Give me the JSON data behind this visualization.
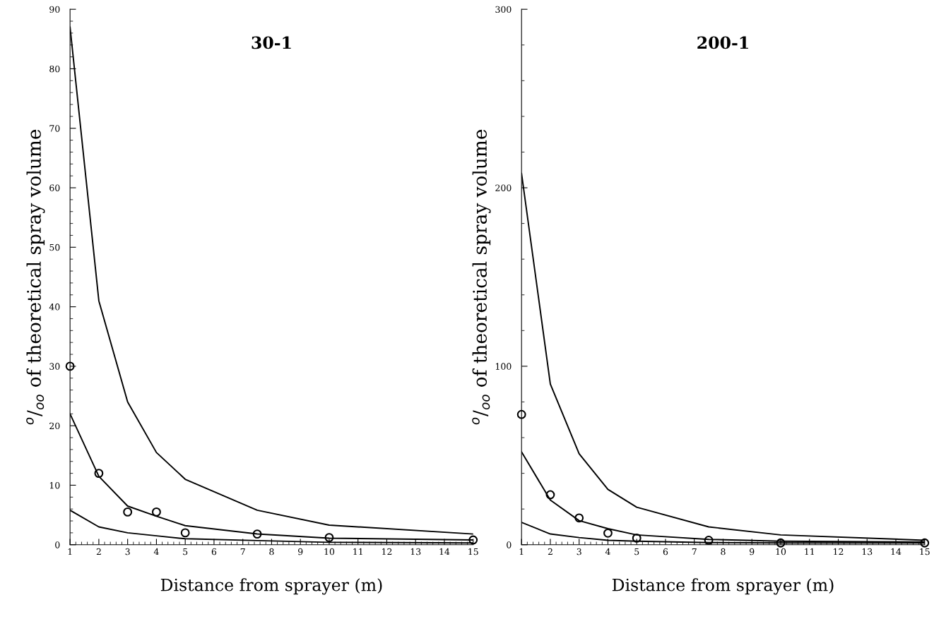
{
  "chart_data": [
    {
      "type": "line",
      "title": "30-1",
      "xlabel": "Distance from sprayer (m)",
      "ylabel": "$^{o}$/$_{oo}$ of theoretical spray volume",
      "x": [
        1,
        2,
        3,
        4,
        5,
        7.5,
        10,
        15
      ],
      "xlim": [
        1,
        15
      ],
      "xticks": [
        1,
        2,
        3,
        4,
        5,
        6,
        7,
        8,
        9,
        10,
        11,
        12,
        13,
        14,
        15
      ],
      "ylim": [
        0,
        90
      ],
      "yticks": [
        0,
        10,
        20,
        30,
        40,
        50,
        60,
        70,
        80,
        90
      ],
      "grid": false,
      "series": [
        {
          "color": "#000000",
          "marker": "none",
          "values": [
            87,
            41,
            24,
            15.5,
            11,
            5.8,
            3.3,
            1.8
          ]
        },
        {
          "color": "#000000",
          "marker": "none",
          "values": [
            22,
            11.5,
            6.5,
            4.8,
            3.2,
            1.8,
            1.1,
            0.8
          ]
        },
        {
          "color": "#000000",
          "marker": "none",
          "values": [
            5.8,
            3.0,
            2.0,
            1.5,
            1.0,
            0.7,
            0.4,
            0.3
          ]
        },
        {
          "type": "scatter",
          "color": "#000000",
          "marker": "circle",
          "values": [
            30,
            12,
            5.5,
            5.5,
            2,
            1.8,
            1.2,
            0.8
          ]
        }
      ]
    },
    {
      "type": "line",
      "title": "200-1",
      "xlabel": "Distance from sprayer (m)",
      "ylabel": "$^{o}$/$_{oo}$ of theoretical spray volume",
      "x": [
        1,
        2,
        3,
        4,
        5,
        7.5,
        10,
        15
      ],
      "xlim": [
        1,
        15
      ],
      "xticks": [
        1,
        2,
        3,
        4,
        5,
        6,
        7,
        8,
        9,
        10,
        11,
        12,
        13,
        14,
        15
      ],
      "ylim": [
        0,
        300
      ],
      "yticks": [
        0,
        100,
        200,
        300
      ],
      "grid": false,
      "series": [
        {
          "color": "#000000",
          "marker": "none",
          "values": [
            208,
            90,
            51,
            31,
            21,
            10,
            5.5,
            2.5
          ]
        },
        {
          "color": "#000000",
          "marker": "none",
          "values": [
            52,
            25,
            13.5,
            9,
            5.5,
            3,
            2,
            1.5
          ]
        },
        {
          "color": "#000000",
          "marker": "none",
          "values": [
            12.5,
            6,
            4,
            2.5,
            2,
            1.2,
            1,
            1
          ]
        },
        {
          "type": "scatter",
          "color": "#000000",
          "marker": "circle",
          "values": [
            73,
            28,
            15,
            6.5,
            3.7,
            2.5,
            1,
            1
          ]
        }
      ]
    }
  ]
}
